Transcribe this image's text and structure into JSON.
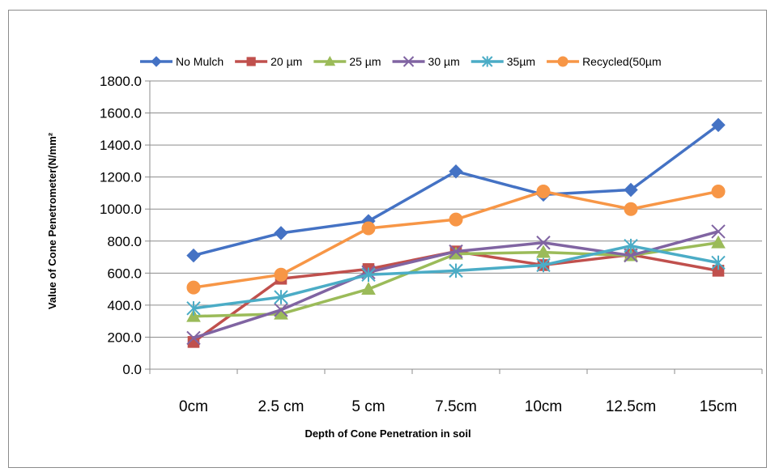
{
  "chart_data": {
    "type": "line",
    "title": "",
    "xlabel": "Depth of Cone Penetration in soil",
    "ylabel": "Value of Cone Penetrometer(N/mm²",
    "categories": [
      "0cm",
      "2.5 cm",
      "5 cm",
      "7.5cm",
      "10cm",
      "12.5cm",
      "15cm"
    ],
    "ylim": [
      0,
      1800
    ],
    "yticks": [
      "0.0",
      "200.0",
      "400.0",
      "600.0",
      "800.0",
      "1000.0",
      "1200.0",
      "1400.0",
      "1600.0",
      "1800.0"
    ],
    "grid": "horizontal",
    "legend": "top",
    "series": [
      {
        "name": "No Mulch",
        "color": "#4472C4",
        "marker": "diamond",
        "values": [
          710,
          850,
          925,
          1235,
          1090,
          1120,
          1525
        ]
      },
      {
        "name": "20 µm",
        "color": "#C0504D",
        "marker": "square",
        "values": [
          170,
          565,
          625,
          735,
          650,
          715,
          615
        ]
      },
      {
        "name": "25 µm",
        "color": "#9BBB59",
        "marker": "triangle",
        "values": [
          330,
          345,
          500,
          720,
          730,
          710,
          790
        ]
      },
      {
        "name": "30 µm",
        "color": "#8064A2",
        "marker": "x",
        "values": [
          195,
          370,
          605,
          735,
          790,
          710,
          860
        ]
      },
      {
        "name": "35µm",
        "color": "#4BACC6",
        "marker": "star",
        "values": [
          380,
          450,
          590,
          615,
          650,
          770,
          665
        ]
      },
      {
        "name": "Recycled(50µm",
        "color": "#F79646",
        "marker": "circle",
        "values": [
          510,
          590,
          880,
          935,
          1110,
          1000,
          1110
        ]
      }
    ]
  }
}
